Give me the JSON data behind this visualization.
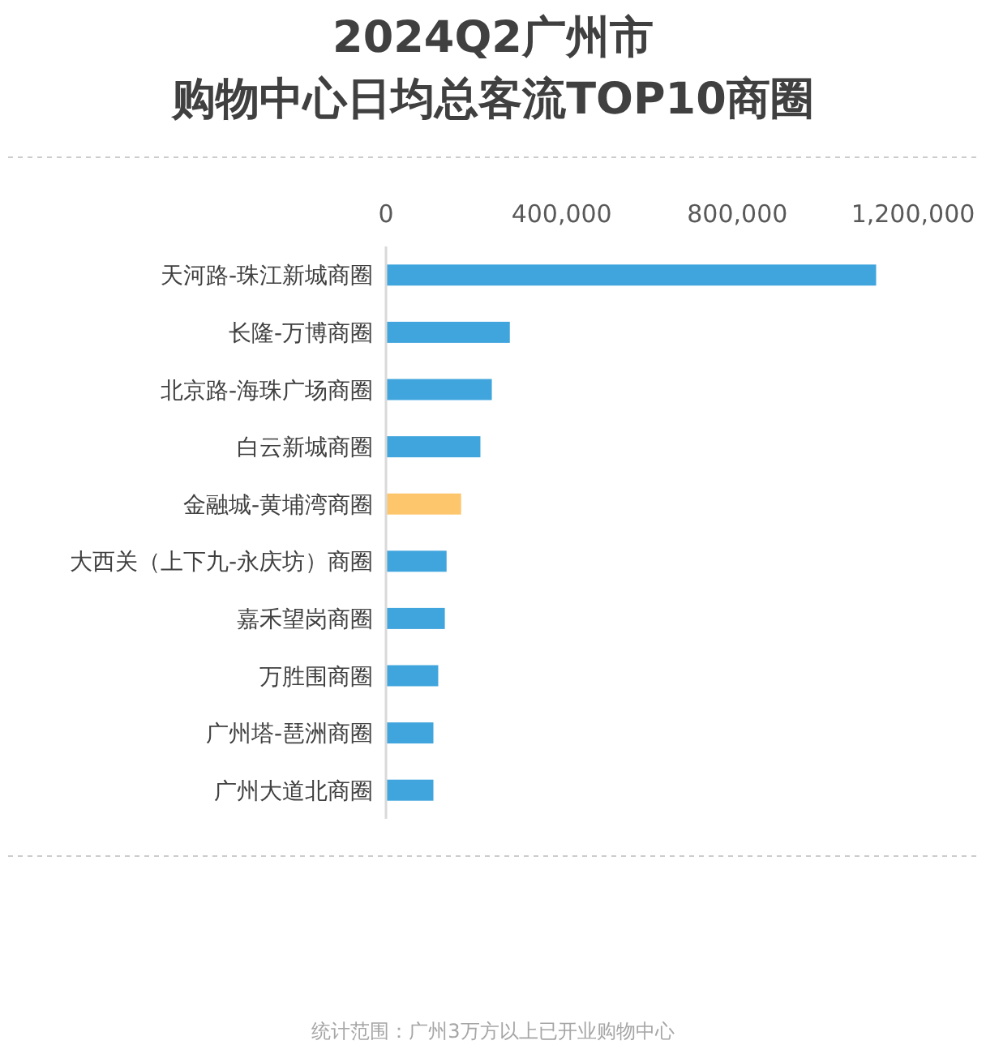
{
  "chart_data": {
    "type": "bar",
    "orientation": "horizontal",
    "title": "2024Q2广州市",
    "subtitle": "购物中心日均总客流TOP10商圈",
    "categories": [
      "天河路-珠江新城商圈",
      "长隆-万博商圈",
      "北京路-海珠广场商圈",
      "白云新城商圈",
      "金融城-黄埔湾商圈",
      "大西关（上下九-永庆坊）商圈",
      "嘉禾望岗商圈",
      "万胜围商圈",
      "广州塔-琶洲商圈",
      "广州大道北商圈"
    ],
    "values": [
      1116000,
      282000,
      241000,
      215000,
      171000,
      138000,
      134000,
      119000,
      108000,
      108000
    ],
    "colors": [
      "#41a5dd",
      "#41a5dd",
      "#41a5dd",
      "#41a5dd",
      "#fec66c",
      "#41a5dd",
      "#41a5dd",
      "#41a5dd",
      "#41a5dd",
      "#41a5dd"
    ],
    "xlim": [
      0,
      1200000
    ],
    "xticks": [
      0,
      {
        "value": 400000,
        "label": "400,000"
      },
      {
        "value": 800000,
        "label": "800,000"
      },
      {
        "value": 1200000,
        "label": "1,200,000"
      }
    ],
    "annotations": [
      "统计范围：广州3万方以上已开业购物中心"
    ]
  }
}
